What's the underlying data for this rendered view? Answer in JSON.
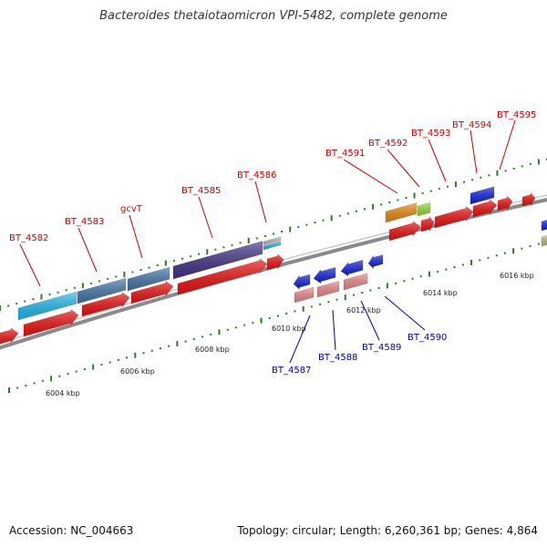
{
  "title": "Bacteroides thetaiotaomicron VPI-5482, complete genome",
  "footer": {
    "accession": "Accession: NC_004663",
    "summary": "Topology: circular; Length: 6,260,361 bp; Genes: 4,864"
  },
  "ticks": [
    "6004 kbp",
    "6006 kbp",
    "6008 kbp",
    "6010 kbp",
    "6012 kbp",
    "6014 kbp",
    "6016 kbp"
  ],
  "forward_labels": [
    "BT_4582",
    "BT_4583",
    "gcvT",
    "BT_4585",
    "BT_4586",
    "BT_4591",
    "BT_4592",
    "BT_4593",
    "BT_4594",
    "BT_4595"
  ],
  "reverse_labels": [
    "BT_4587",
    "BT_4588",
    "BT_4589",
    "BT_4590"
  ],
  "colors": {
    "backbone": "#8a8a8a",
    "gene_red": "#ee1111",
    "gene_pink": "#ee8888",
    "gene_blue": "#1122dd",
    "cyan": "#22bbee",
    "steelblue": "#4477aa",
    "purple": "#443388",
    "orange": "#ee8811",
    "lime": "#99dd33",
    "tick_green": "#2d7a2d",
    "label_red": "#cc0000",
    "label_blue": "#0000aa"
  }
}
